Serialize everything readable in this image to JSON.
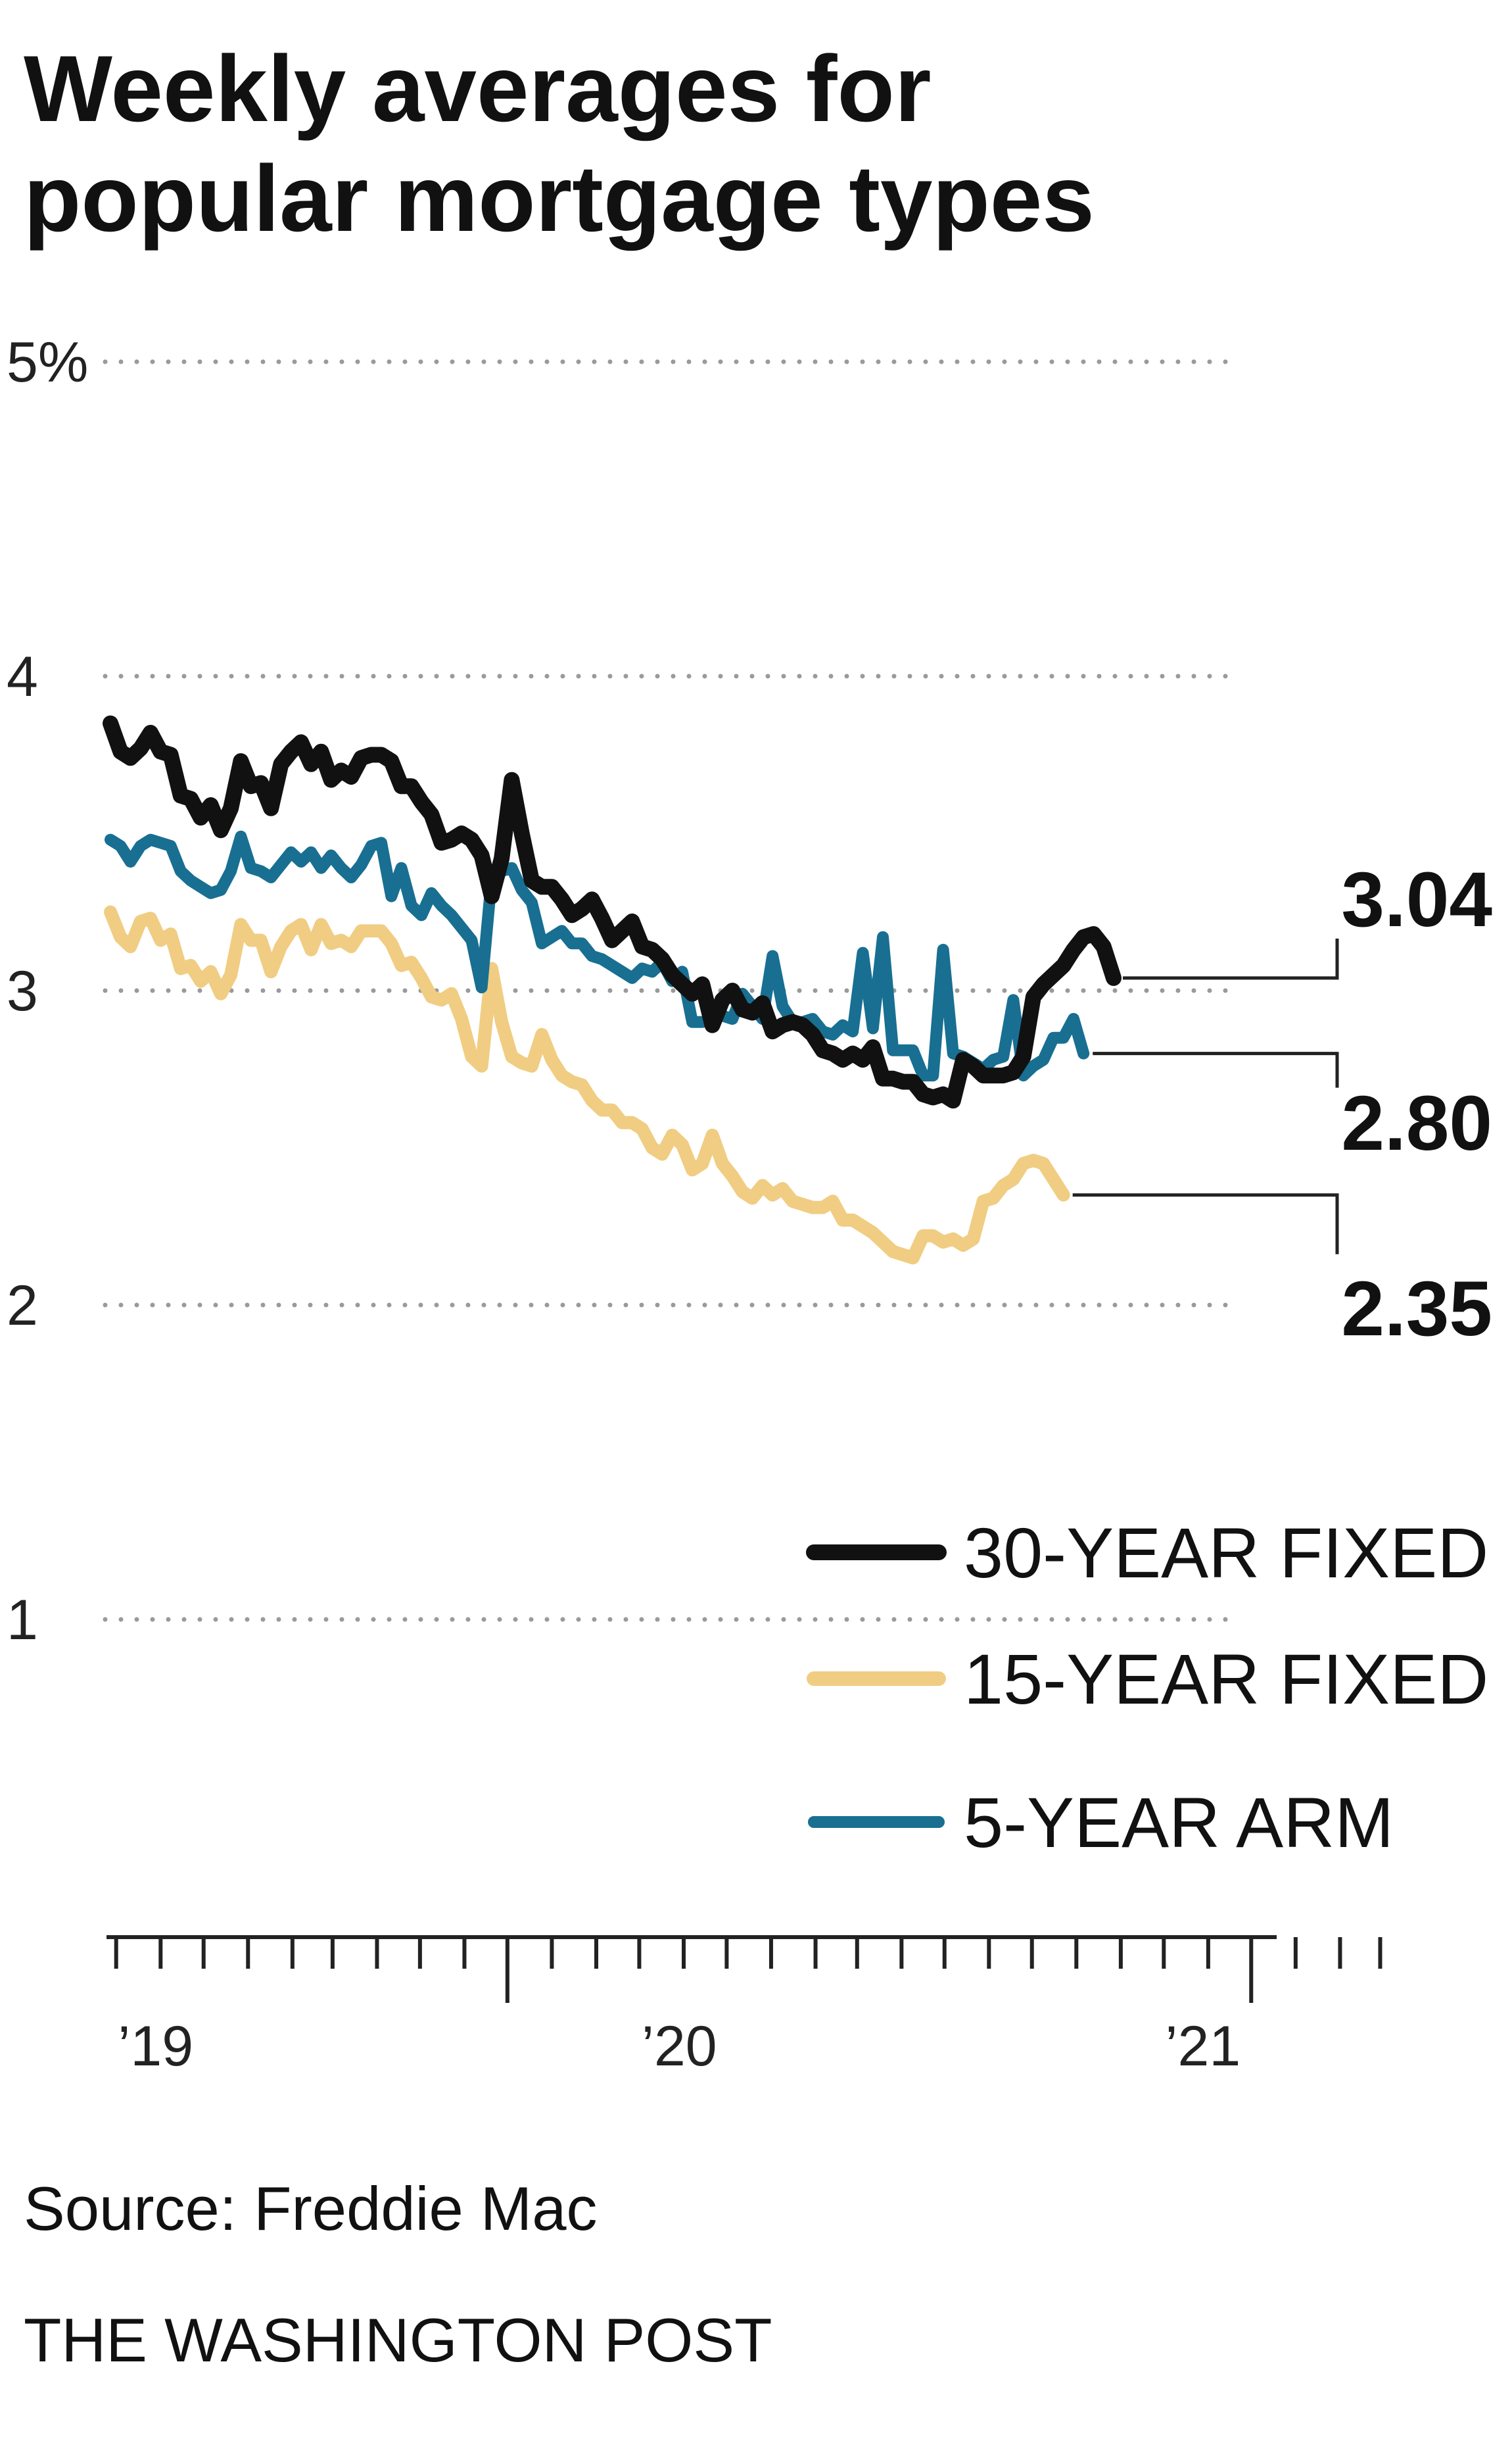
{
  "chart_data": {
    "type": "line",
    "title": "Weekly averages for popular mortgage types",
    "x_unit": "weeks",
    "x_start": "2018-09-27",
    "x_end": "2021-03-04",
    "xlim": [
      0,
      127
    ],
    "ylim": [
      0.5,
      5
    ],
    "yticks": [
      {
        "value": 5,
        "label": "5%"
      },
      {
        "value": 4,
        "label": "4"
      },
      {
        "value": 3,
        "label": "3"
      },
      {
        "value": 2,
        "label": "2"
      },
      {
        "value": 1,
        "label": "1"
      }
    ],
    "xticks": [
      {
        "week": 4.5,
        "label": "’19"
      },
      {
        "week": 56.7,
        "label": "’20"
      },
      {
        "week": 108.9,
        "label": "’21"
      }
    ],
    "grid": true,
    "legend_position": "bottom-right",
    "series": [
      {
        "name": "30-YEAR FIXED",
        "color": "#111111",
        "end_label": "3.04",
        "values": [
          3.85,
          3.76,
          3.74,
          3.77,
          3.82,
          3.76,
          3.75,
          3.62,
          3.61,
          3.55,
          3.59,
          3.51,
          3.58,
          3.73,
          3.65,
          3.66,
          3.58,
          3.72,
          3.76,
          3.79,
          3.72,
          3.76,
          3.67,
          3.7,
          3.68,
          3.74,
          3.75,
          3.75,
          3.73,
          3.65,
          3.65,
          3.6,
          3.56,
          3.47,
          3.48,
          3.5,
          3.48,
          3.43,
          3.3,
          3.42,
          3.67,
          3.5,
          3.35,
          3.33,
          3.33,
          3.29,
          3.24,
          3.26,
          3.29,
          3.23,
          3.16,
          3.19,
          3.22,
          3.14,
          3.13,
          3.1,
          3.05,
          3.02,
          2.99,
          3.02,
          2.89,
          2.97,
          3.0,
          2.94,
          2.93,
          2.96,
          2.87,
          2.89,
          2.9,
          2.89,
          2.86,
          2.81,
          2.8,
          2.78,
          2.8,
          2.78,
          2.82,
          2.72,
          2.72,
          2.71,
          2.71,
          2.67,
          2.66,
          2.67,
          2.65,
          2.78,
          2.76,
          2.73,
          2.73,
          2.73,
          2.74,
          2.79,
          2.98,
          3.02,
          3.05,
          3.08,
          3.13,
          3.17,
          3.18,
          3.14,
          3.04
        ]
      },
      {
        "name": "15-YEAR FIXED",
        "color": "#f0cd82",
        "end_label": "2.35",
        "values": [
          3.25,
          3.17,
          3.14,
          3.22,
          3.23,
          3.16,
          3.18,
          3.07,
          3.08,
          3.03,
          3.06,
          2.99,
          3.05,
          3.21,
          3.16,
          3.16,
          3.06,
          3.14,
          3.19,
          3.21,
          3.13,
          3.21,
          3.15,
          3.16,
          3.14,
          3.19,
          3.19,
          3.19,
          3.15,
          3.08,
          3.09,
          3.04,
          2.98,
          2.97,
          2.99,
          2.91,
          2.79,
          2.76,
          3.07,
          2.9,
          2.79,
          2.77,
          2.76,
          2.86,
          2.78,
          2.73,
          2.71,
          2.7,
          2.65,
          2.62,
          2.62,
          2.58,
          2.58,
          2.56,
          2.5,
          2.48,
          2.54,
          2.51,
          2.43,
          2.45,
          2.54,
          2.45,
          2.41,
          2.36,
          2.34,
          2.38,
          2.35,
          2.37,
          2.33,
          2.32,
          2.31,
          2.31,
          2.33,
          2.27,
          2.27,
          2.25,
          2.23,
          2.2,
          2.17,
          2.16,
          2.15,
          2.22,
          2.22,
          2.2,
          2.21,
          2.19,
          2.21,
          2.33,
          2.34,
          2.38,
          2.4,
          2.45,
          2.46,
          2.45,
          2.4,
          2.35
        ]
      },
      {
        "name": "5-YEAR ARM",
        "color": "#186f92",
        "end_label": "2.80",
        "values": [
          3.48,
          3.46,
          3.41,
          3.46,
          3.48,
          3.47,
          3.46,
          3.38,
          3.35,
          3.33,
          3.31,
          3.32,
          3.38,
          3.49,
          3.39,
          3.38,
          3.36,
          3.4,
          3.44,
          3.41,
          3.44,
          3.39,
          3.43,
          3.39,
          3.36,
          3.4,
          3.46,
          3.47,
          3.3,
          3.39,
          3.27,
          3.24,
          3.31,
          3.27,
          3.24,
          3.2,
          3.16,
          3.01,
          3.36,
          3.38,
          3.39,
          3.32,
          3.28,
          3.15,
          3.17,
          3.19,
          3.15,
          3.15,
          3.11,
          3.1,
          3.08,
          3.06,
          3.04,
          3.07,
          3.06,
          3.09,
          3.03,
          3.06,
          2.9,
          2.9,
          2.91,
          2.92,
          2.91,
          2.99,
          2.95,
          2.91,
          3.11,
          2.95,
          2.9,
          2.9,
          2.91,
          2.87,
          2.86,
          2.89,
          2.87,
          3.12,
          2.88,
          3.17,
          2.81,
          2.81,
          2.81,
          2.73,
          2.73,
          3.13,
          2.8,
          2.79,
          2.77,
          2.75,
          2.78,
          2.79,
          2.97,
          2.73,
          2.76,
          2.78,
          2.85,
          2.85,
          2.91,
          2.8
        ]
      }
    ],
    "source": "Source: Freddie Mac",
    "credit": "THE WASHINGTON POST"
  }
}
